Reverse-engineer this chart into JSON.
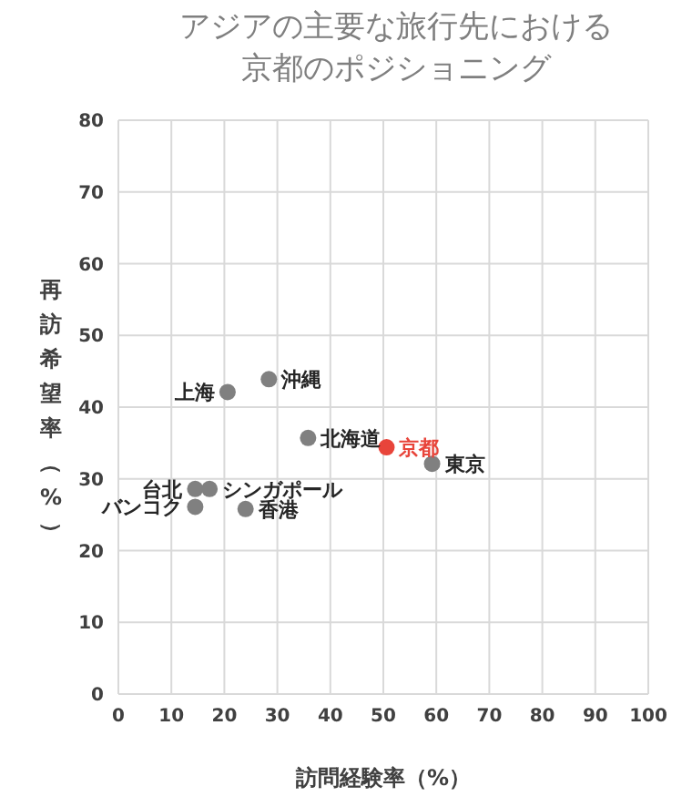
{
  "chart_data": {
    "type": "scatter",
    "title": "アジアの主要な旅行先における京都のポジショニング",
    "xlabel": "訪問経験率（%）",
    "ylabel": "再訪希望率（%）",
    "series": [
      {
        "x": [
          20.6,
          28.4,
          35.8,
          50.6,
          59.2,
          14.5,
          17.2,
          14.5,
          24.0
        ],
        "values": [
          42.1,
          43.9,
          35.7,
          34.4,
          32.1,
          28.6,
          28.6,
          26.1,
          25.8
        ],
        "colors": [
          "#808080",
          "#808080",
          "#808080",
          "#e8443a",
          "#808080",
          "#808080",
          "#808080",
          "#808080",
          "#808080"
        ]
      }
    ],
    "annotations": [
      {
        "text": "上海",
        "x": 20.6,
        "y": 42.1
      },
      {
        "text": "沖縄",
        "x": 28.4,
        "y": 43.9
      },
      {
        "text": "北海道",
        "x": 35.8,
        "y": 35.7
      },
      {
        "text": "京都",
        "x": 50.6,
        "y": 34.4
      },
      {
        "text": "東京",
        "x": 59.2,
        "y": 32.1
      },
      {
        "text": "台北",
        "x": 14.5,
        "y": 28.6
      },
      {
        "text": "シンガポール",
        "x": 17.2,
        "y": 28.6
      },
      {
        "text": "バンコク",
        "x": 14.5,
        "y": 26.1
      },
      {
        "text": "香港",
        "x": 24.0,
        "y": 25.8
      }
    ],
    "xlim": [
      0,
      100
    ],
    "xticks": [
      0,
      10,
      20,
      30,
      40,
      50,
      60,
      70,
      80,
      90,
      100
    ],
    "ylim": [
      0,
      80
    ],
    "yticks": [
      0,
      10,
      20,
      30,
      40,
      50,
      60,
      70,
      80
    ],
    "grid": true,
    "marker": "circle"
  }
}
